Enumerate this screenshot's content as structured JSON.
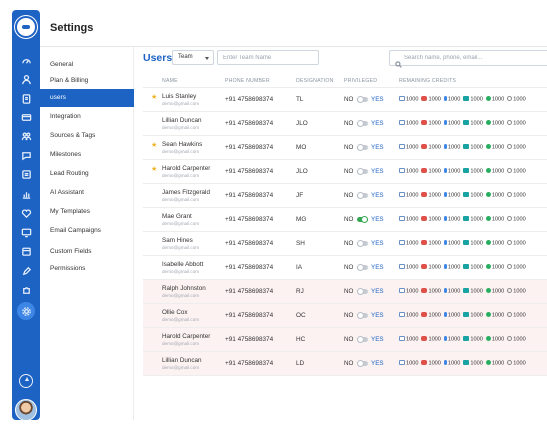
{
  "settings": {
    "title": "Settings"
  },
  "menu": [
    "General",
    "Plan & Billing",
    "users",
    "Integration",
    "Sources & Tags",
    "Milestones",
    "Lead Routing",
    "AI Assistant",
    "My Templates",
    "Email Campaigns",
    "Custom Fields",
    "Permissions"
  ],
  "menu_active_index": 2,
  "toolbar": {
    "title": "Users",
    "team_select": "Team",
    "team_placeholder": "Enter Team Name",
    "search_placeholder": "Search name, phone, email..."
  },
  "table": {
    "headers": [
      "NAME",
      "PHONE NUMBER",
      "DESIGNATION",
      "PRIVILEGED",
      "REMAINING CREDITS"
    ],
    "priv_no": "NO",
    "priv_yes": "YES",
    "credit_value": "1000",
    "rows": [
      {
        "name": "Luis Stanley",
        "email": "demo@gmail.com",
        "phone": "+91 4758698374",
        "designation": "TL",
        "starred": true,
        "privileged_on": false,
        "highlight": false
      },
      {
        "name": "Lillian Duncan",
        "email": "demo@gmail.com",
        "phone": "+91 4758698374",
        "designation": "JLO",
        "starred": false,
        "privileged_on": false,
        "highlight": false
      },
      {
        "name": "Sean Hawkins",
        "email": "demo@gmail.com",
        "phone": "+91 4758698374",
        "designation": "MO",
        "starred": true,
        "privileged_on": false,
        "highlight": false
      },
      {
        "name": "Harold Carpenter",
        "email": "demo@gmail.com",
        "phone": "+91 4758698374",
        "designation": "JLO",
        "starred": true,
        "privileged_on": false,
        "highlight": false
      },
      {
        "name": "James Fitzgerald",
        "email": "demo@gmail.com",
        "phone": "+91 4758698374",
        "designation": "JF",
        "starred": false,
        "privileged_on": false,
        "highlight": false
      },
      {
        "name": "Mae Grant",
        "email": "demo@gmail.com",
        "phone": "+91 4758698374",
        "designation": "MG",
        "starred": false,
        "privileged_on": true,
        "highlight": false
      },
      {
        "name": "Sam Hines",
        "email": "demo@gmail.com",
        "phone": "+91 4758698374",
        "designation": "SH",
        "starred": false,
        "privileged_on": false,
        "highlight": false
      },
      {
        "name": "Isabelle Abbott",
        "email": "demo@gmail.com",
        "phone": "+91 4758698374",
        "designation": "IA",
        "starred": false,
        "privileged_on": false,
        "highlight": false
      },
      {
        "name": "Ralph Johnston",
        "email": "demo@gmail.com",
        "phone": "+91 4758698374",
        "designation": "RJ",
        "starred": false,
        "privileged_on": false,
        "highlight": true
      },
      {
        "name": "Ollie Cox",
        "email": "demo@gmail.com",
        "phone": "+91 4758698374",
        "designation": "OC",
        "starred": false,
        "privileged_on": false,
        "highlight": true
      },
      {
        "name": "Harold Carpenter",
        "email": "demo@gmail.com",
        "phone": "+91 4758698374",
        "designation": "HC",
        "starred": false,
        "privileged_on": false,
        "highlight": true
      },
      {
        "name": "Lillian Duncan",
        "email": "demo@gmail.com",
        "phone": "+91 4758698374",
        "designation": "LD",
        "starred": false,
        "privileged_on": false,
        "highlight": true
      }
    ]
  },
  "credit_icons": [
    "mail-icon",
    "sms-icon",
    "mic-icon",
    "whatsapp-icon",
    "call-icon",
    "settings-icon"
  ],
  "colors": {
    "brand": "#1c63c4",
    "highlight_row": "#fdf2f2",
    "star": "#f0b429",
    "toggle_on": "#34a853"
  }
}
